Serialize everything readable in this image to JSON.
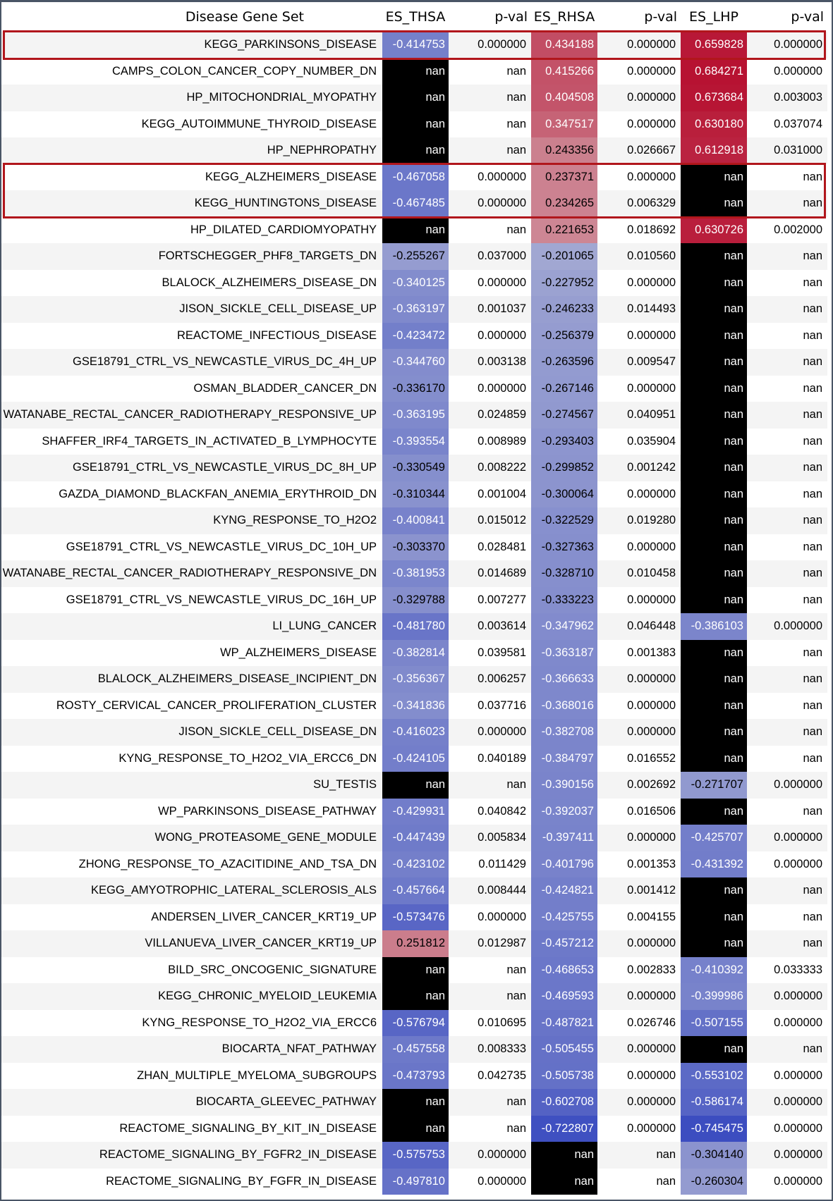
{
  "chart_data": {
    "type": "heatmap",
    "columns": [
      "Disease Gene Set",
      "ES_THSA",
      "p-val",
      "ES_RHSA",
      "p-val",
      "ES_LHP",
      "p-val"
    ],
    "heat_columns": [
      1,
      3,
      5
    ],
    "missing_label": "nan",
    "colors": {
      "missing": "#000000",
      "negative_max": "#3b4cc0",
      "neutral": "#dddddd",
      "positive_max": "#b40426",
      "highlight_border": "#b1161c"
    },
    "color_range": [
      -0.75,
      0.75
    ],
    "highlighted_rows": [
      [
        0,
        0
      ],
      [
        5,
        6
      ]
    ],
    "rows": [
      [
        "KEGG_PARKINSONS_DISEASE",
        "-0.414753",
        "0.000000",
        "0.434188",
        "0.000000",
        "0.659828",
        "0.000000"
      ],
      [
        "CAMPS_COLON_CANCER_COPY_NUMBER_DN",
        "nan",
        "nan",
        "0.415266",
        "0.000000",
        "0.684271",
        "0.000000"
      ],
      [
        "HP_MITOCHONDRIAL_MYOPATHY",
        "nan",
        "nan",
        "0.404508",
        "0.000000",
        "0.673684",
        "0.003003"
      ],
      [
        "KEGG_AUTOIMMUNE_THYROID_DISEASE",
        "nan",
        "nan",
        "0.347517",
        "0.000000",
        "0.630180",
        "0.037074"
      ],
      [
        "HP_NEPHROPATHY",
        "nan",
        "nan",
        "0.243356",
        "0.026667",
        "0.612918",
        "0.031000"
      ],
      [
        "KEGG_ALZHEIMERS_DISEASE",
        "-0.467058",
        "0.000000",
        "0.237371",
        "0.000000",
        "nan",
        "nan"
      ],
      [
        "KEGG_HUNTINGTONS_DISEASE",
        "-0.467485",
        "0.000000",
        "0.234265",
        "0.006329",
        "nan",
        "nan"
      ],
      [
        "HP_DILATED_CARDIOMYOPATHY",
        "nan",
        "nan",
        "0.221653",
        "0.018692",
        "0.630726",
        "0.002000"
      ],
      [
        "FORTSCHEGGER_PHF8_TARGETS_DN",
        "-0.255267",
        "0.037000",
        "-0.201065",
        "0.010560",
        "nan",
        "nan"
      ],
      [
        "BLALOCK_ALZHEIMERS_DISEASE_DN",
        "-0.340125",
        "0.000000",
        "-0.227952",
        "0.000000",
        "nan",
        "nan"
      ],
      [
        "JISON_SICKLE_CELL_DISEASE_UP",
        "-0.363197",
        "0.001037",
        "-0.246233",
        "0.014493",
        "nan",
        "nan"
      ],
      [
        "REACTOME_INFECTIOUS_DISEASE",
        "-0.423472",
        "0.000000",
        "-0.256379",
        "0.000000",
        "nan",
        "nan"
      ],
      [
        "GSE18791_CTRL_VS_NEWCASTLE_VIRUS_DC_4H_UP",
        "-0.344760",
        "0.003138",
        "-0.263596",
        "0.009547",
        "nan",
        "nan"
      ],
      [
        "OSMAN_BLADDER_CANCER_DN",
        "-0.336170",
        "0.000000",
        "-0.267146",
        "0.000000",
        "nan",
        "nan"
      ],
      [
        "WATANABE_RECTAL_CANCER_RADIOTHERAPY_RESPONSIVE_UP",
        "-0.363195",
        "0.024859",
        "-0.274567",
        "0.040951",
        "nan",
        "nan"
      ],
      [
        "SHAFFER_IRF4_TARGETS_IN_ACTIVATED_B_LYMPHOCYTE",
        "-0.393554",
        "0.008989",
        "-0.293403",
        "0.035904",
        "nan",
        "nan"
      ],
      [
        "GSE18791_CTRL_VS_NEWCASTLE_VIRUS_DC_8H_UP",
        "-0.330549",
        "0.008222",
        "-0.299852",
        "0.001242",
        "nan",
        "nan"
      ],
      [
        "GAZDA_DIAMOND_BLACKFAN_ANEMIA_ERYTHROID_DN",
        "-0.310344",
        "0.001004",
        "-0.300064",
        "0.000000",
        "nan",
        "nan"
      ],
      [
        "KYNG_RESPONSE_TO_H2O2",
        "-0.400841",
        "0.015012",
        "-0.322529",
        "0.019280",
        "nan",
        "nan"
      ],
      [
        "GSE18791_CTRL_VS_NEWCASTLE_VIRUS_DC_10H_UP",
        "-0.303370",
        "0.028481",
        "-0.327363",
        "0.000000",
        "nan",
        "nan"
      ],
      [
        "WATANABE_RECTAL_CANCER_RADIOTHERAPY_RESPONSIVE_DN",
        "-0.381953",
        "0.014689",
        "-0.328710",
        "0.010458",
        "nan",
        "nan"
      ],
      [
        "GSE18791_CTRL_VS_NEWCASTLE_VIRUS_DC_16H_UP",
        "-0.329788",
        "0.007277",
        "-0.333223",
        "0.000000",
        "nan",
        "nan"
      ],
      [
        "LI_LUNG_CANCER",
        "-0.481780",
        "0.003614",
        "-0.347962",
        "0.046448",
        "-0.386103",
        "0.000000"
      ],
      [
        "WP_ALZHEIMERS_DISEASE",
        "-0.382814",
        "0.039581",
        "-0.363187",
        "0.001383",
        "nan",
        "nan"
      ],
      [
        "BLALOCK_ALZHEIMERS_DISEASE_INCIPIENT_DN",
        "-0.356367",
        "0.006257",
        "-0.366633",
        "0.000000",
        "nan",
        "nan"
      ],
      [
        "ROSTY_CERVICAL_CANCER_PROLIFERATION_CLUSTER",
        "-0.341836",
        "0.037716",
        "-0.368016",
        "0.000000",
        "nan",
        "nan"
      ],
      [
        "JISON_SICKLE_CELL_DISEASE_DN",
        "-0.416023",
        "0.000000",
        "-0.382708",
        "0.000000",
        "nan",
        "nan"
      ],
      [
        "KYNG_RESPONSE_TO_H2O2_VIA_ERCC6_DN",
        "-0.424105",
        "0.040189",
        "-0.384797",
        "0.016552",
        "nan",
        "nan"
      ],
      [
        "SU_TESTIS",
        "nan",
        "nan",
        "-0.390156",
        "0.002692",
        "-0.271707",
        "0.000000"
      ],
      [
        "WP_PARKINSONS_DISEASE_PATHWAY",
        "-0.429931",
        "0.040842",
        "-0.392037",
        "0.016506",
        "nan",
        "nan"
      ],
      [
        "WONG_PROTEASOME_GENE_MODULE",
        "-0.447439",
        "0.005834",
        "-0.397411",
        "0.000000",
        "-0.425707",
        "0.000000"
      ],
      [
        "ZHONG_RESPONSE_TO_AZACITIDINE_AND_TSA_DN",
        "-0.423102",
        "0.011429",
        "-0.401796",
        "0.001353",
        "-0.431392",
        "0.000000"
      ],
      [
        "KEGG_AMYOTROPHIC_LATERAL_SCLEROSIS_ALS",
        "-0.457664",
        "0.008444",
        "-0.424821",
        "0.001412",
        "nan",
        "nan"
      ],
      [
        "ANDERSEN_LIVER_CANCER_KRT19_UP",
        "-0.573476",
        "0.000000",
        "-0.425755",
        "0.004155",
        "nan",
        "nan"
      ],
      [
        "VILLANUEVA_LIVER_CANCER_KRT19_UP",
        "0.251812",
        "0.012987",
        "-0.457212",
        "0.000000",
        "nan",
        "nan"
      ],
      [
        "BILD_SRC_ONCOGENIC_SIGNATURE",
        "nan",
        "nan",
        "-0.468653",
        "0.002833",
        "-0.410392",
        "0.033333"
      ],
      [
        "KEGG_CHRONIC_MYELOID_LEUKEMIA",
        "nan",
        "nan",
        "-0.469593",
        "0.000000",
        "-0.399986",
        "0.000000"
      ],
      [
        "KYNG_RESPONSE_TO_H2O2_VIA_ERCC6",
        "-0.576794",
        "0.010695",
        "-0.487821",
        "0.026746",
        "-0.507155",
        "0.000000"
      ],
      [
        "BIOCARTA_NFAT_PATHWAY",
        "-0.457558",
        "0.008333",
        "-0.505455",
        "0.000000",
        "nan",
        "nan"
      ],
      [
        "ZHAN_MULTIPLE_MYELOMA_SUBGROUPS",
        "-0.473793",
        "0.042735",
        "-0.505738",
        "0.000000",
        "-0.553102",
        "0.000000"
      ],
      [
        "BIOCARTA_GLEEVEC_PATHWAY",
        "nan",
        "nan",
        "-0.602708",
        "0.000000",
        "-0.586174",
        "0.000000"
      ],
      [
        "REACTOME_SIGNALING_BY_KIT_IN_DISEASE",
        "nan",
        "nan",
        "-0.722807",
        "0.000000",
        "-0.745475",
        "0.000000"
      ],
      [
        "REACTOME_SIGNALING_BY_FGFR2_IN_DISEASE",
        "-0.575753",
        "0.000000",
        "nan",
        "nan",
        "-0.304140",
        "0.000000"
      ],
      [
        "REACTOME_SIGNALING_BY_FGFR_IN_DISEASE",
        "-0.497810",
        "0.000000",
        "nan",
        "nan",
        "-0.260304",
        "0.000000"
      ]
    ]
  }
}
